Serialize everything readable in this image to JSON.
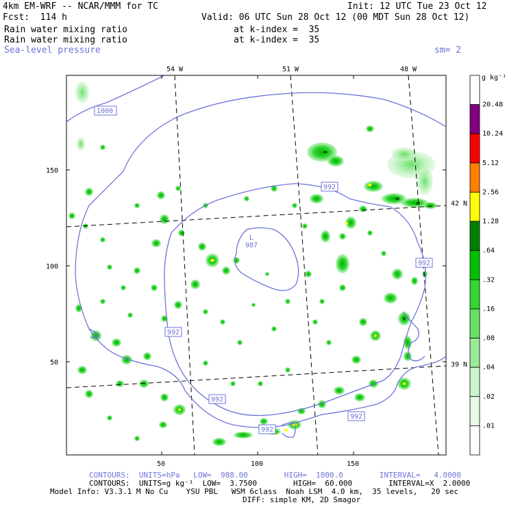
{
  "header": {
    "model": "4km EM-WRF -- NCAR/MMM for TC",
    "init": "Init: 12 UTC Tue 23 Oct 12",
    "fcst": "Fcst:  114 h",
    "valid": "Valid: 06 UTC Sun 28 Oct 12 (00 MDT Sun 28 Oct 12)",
    "field1": "Rain water mixing ratio",
    "field1_level": "at k-index =  35",
    "field2": "Rain water mixing ratio",
    "field2_level": "at k-index =  35",
    "field3": "Sea-level pressure",
    "smoothing": "sm= 2"
  },
  "map": {
    "lon_labels": [
      "54 W",
      "51 W",
      "48 W"
    ],
    "lat_labels": [
      "42 N",
      "39 N"
    ],
    "y_ticks": [
      "150",
      "100",
      "50"
    ],
    "x_ticks": [
      "50",
      "100",
      "150"
    ],
    "isobar_labels": [
      "1000",
      "992",
      "992",
      "992",
      "992",
      "992",
      "992"
    ],
    "low_center": {
      "letter": "L",
      "value": "987"
    }
  },
  "colorbar": {
    "units": "g kg⁻¹",
    "levels": [
      "20.48",
      "10.24",
      "5.12",
      "2.56",
      "1.28",
      ".64",
      ".32",
      ".16",
      ".08",
      ".04",
      ".02",
      ".01"
    ],
    "colors": [
      "#ffffff",
      "#800080",
      "#ff0000",
      "#ff8000",
      "#ffff00",
      "#008000",
      "#00c000",
      "#33d633",
      "#66e066",
      "#99ea99",
      "#ccf5cc",
      "#e6fae6",
      "#ffffff"
    ]
  },
  "footer": {
    "contours1": "CONTOURS:  UNITS=hPa   LOW=  988.00        HIGH=  1000.0        INTERVAL=   4.0000",
    "contours2": "CONTOURS:  UNITS=g kg⁻¹  LOW=  3.7500        HIGH=  60.000        INTERVAL=X  2.0000",
    "model_info": "Model Info: V3.3.1 M No Cu    YSU PBL   WSM 6class  Noah LSM  4.0 km,  35 levels,   20 sec",
    "diff": "DIFF: simple KM, 2D Smagor"
  }
}
